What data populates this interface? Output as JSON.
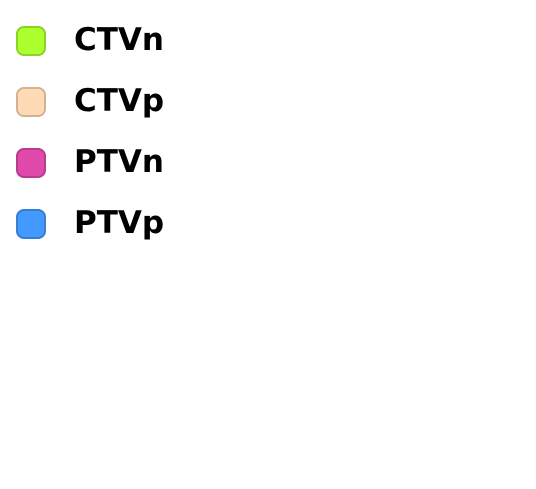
{
  "legend": {
    "items": [
      {
        "label": "CTVn",
        "color": "#AEFF2E"
      },
      {
        "label": "CTVp",
        "color": "#FFDBB5"
      },
      {
        "label": "PTVn",
        "color": "#E04AAA"
      },
      {
        "label": "PTVp",
        "color": "#4499FF"
      }
    ]
  }
}
